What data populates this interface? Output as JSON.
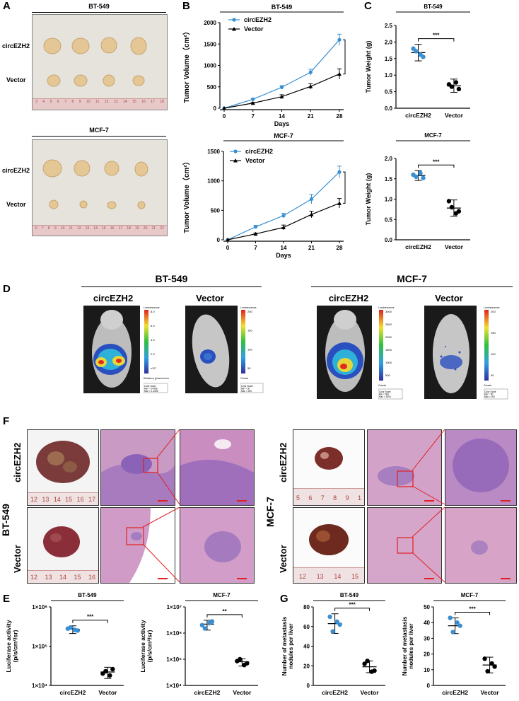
{
  "panel_letters": {
    "A": "A",
    "B": "B",
    "C": "C",
    "D": "D",
    "E": "E",
    "F": "F",
    "G": "G"
  },
  "cells": {
    "bt549": "BT-549",
    "mcf7": "MCF-7"
  },
  "groups": {
    "circ": "circEZH2",
    "vec": "Vector"
  },
  "panelA": {
    "bt_ruler": [
      "3",
      "4",
      "5",
      "6",
      "7",
      "8",
      "9",
      "10",
      "11",
      "12",
      "13",
      "14",
      "15",
      "16",
      "17",
      "18"
    ],
    "mcf_ruler": [
      "6",
      "7",
      "8",
      "9",
      "10",
      "11",
      "12",
      "13",
      "14",
      "15",
      "16",
      "17",
      "18",
      "19",
      "20",
      "21",
      "22"
    ]
  },
  "chart_data": [
    {
      "id": "B-BT549",
      "type": "line",
      "title": "BT-549",
      "x": [
        0,
        7,
        14,
        21,
        28
      ],
      "xlabel": "Days",
      "ylabel": "Tumor Volume（cm²）",
      "ylim": [
        0,
        2000
      ],
      "yticks": [
        "0",
        "500",
        "1000",
        "1500",
        "2000"
      ],
      "series": [
        {
          "name": "circEZH2",
          "values": [
            0,
            210,
            490,
            840,
            1600
          ],
          "err": [
            0,
            20,
            40,
            70,
            130
          ],
          "color": "#3a8fd0"
        },
        {
          "name": "Vector",
          "values": [
            0,
            120,
            270,
            510,
            800
          ],
          "err": [
            0,
            15,
            45,
            60,
            120
          ],
          "color": "#000000"
        }
      ],
      "sig": "***"
    },
    {
      "id": "B-MCF7",
      "type": "line",
      "title": "MCF-7",
      "x": [
        0,
        7,
        14,
        21,
        28
      ],
      "xlabel": "Days",
      "ylabel": "Tumor Volume（cm²）",
      "ylim": [
        0,
        1500
      ],
      "yticks": [
        "0",
        "500",
        "1000",
        "1500"
      ],
      "series": [
        {
          "name": "circEZH2",
          "values": [
            0,
            220,
            410,
            690,
            1150
          ],
          "err": [
            0,
            25,
            40,
            80,
            100
          ],
          "color": "#3a8fd0"
        },
        {
          "name": "Vector",
          "values": [
            0,
            100,
            210,
            430,
            620
          ],
          "err": [
            0,
            15,
            40,
            55,
            80
          ],
          "color": "#000000"
        }
      ],
      "sig": "***"
    },
    {
      "id": "C-BT549",
      "type": "scatter",
      "title": "BT-549",
      "ylabel": "Tumor Weight (g)",
      "categories": [
        "circEZH2",
        "Vector"
      ],
      "ylim": [
        0,
        2.5
      ],
      "yticks": [
        "0.0",
        "0.5",
        "1.0",
        "1.5",
        "2.0",
        "2.5"
      ],
      "points": [
        [
          1.8,
          1.55,
          1.72,
          1.62
        ],
        [
          0.72,
          0.58,
          0.65,
          0.78
        ]
      ],
      "means": [
        1.68,
        0.68
      ],
      "sds": [
        0.25,
        0.2
      ],
      "sig": "***"
    },
    {
      "id": "C-MCF7",
      "type": "scatter",
      "title": "MCF-7",
      "ylabel": "Tumor Weight (g)",
      "categories": [
        "circEZH2",
        "Vector"
      ],
      "ylim": [
        0,
        2.0
      ],
      "yticks": [
        "0.0",
        "0.5",
        "1.0",
        "1.5",
        "2.0"
      ],
      "points": [
        [
          1.6,
          1.52,
          1.55,
          1.64
        ],
        [
          0.95,
          0.7,
          0.8,
          0.65
        ]
      ],
      "means": [
        1.58,
        0.78
      ],
      "sds": [
        0.12,
        0.2
      ],
      "sig": "***"
    },
    {
      "id": "E-BT549",
      "type": "scatter",
      "scale": "log",
      "title": "BT-549",
      "ylabel": "Luciferase activity (p/s/cm²/sr)",
      "categories": [
        "circEZH2",
        "Vector"
      ],
      "ylim": [
        10000,
        1000000
      ],
      "yticks": [
        "1×10⁴",
        "1×10⁵",
        "1×10⁶"
      ],
      "points": [
        [
          280000,
          250000,
          300000,
          260000
        ],
        [
          20000,
          26000,
          23000,
          18000
        ]
      ],
      "means": [
        270000,
        22000
      ],
      "sds": [
        60000,
        7000
      ],
      "sig": "***"
    },
    {
      "id": "E-MCF7",
      "type": "scatter",
      "scale": "log",
      "title": "MCF-7",
      "ylabel": "Luciferase activity (p/s/cm²/sr)",
      "categories": [
        "circEZH2",
        "Vector"
      ],
      "ylim": [
        10000,
        10000000
      ],
      "yticks": [
        "1×10⁴",
        "1×10⁵",
        "1×10⁶",
        "1×10⁷"
      ],
      "points": [
        [
          2000000,
          2800000,
          1500000,
          2400000
        ],
        [
          85000,
          70000,
          100000,
          60000
        ]
      ],
      "means": [
        2200000,
        80000
      ],
      "sds": [
        900000,
        25000
      ],
      "sig": "**"
    },
    {
      "id": "G-BT549",
      "type": "scatter",
      "title": "BT-549",
      "ylabel": "Number of metastasis nodules per liver",
      "categories": [
        "circEZH2",
        "Vector"
      ],
      "ylim": [
        0,
        80
      ],
      "yticks": [
        "0",
        "20",
        "40",
        "60",
        "80"
      ],
      "points": [
        [
          70,
          62,
          55,
          65
        ],
        [
          22,
          15,
          25,
          14
        ]
      ],
      "means": [
        63,
        19
      ],
      "sds": [
        10,
        6
      ],
      "sig": "***"
    },
    {
      "id": "G-MCF7",
      "type": "scatter",
      "title": "MCF-7",
      "ylabel": "Number of metastasis nodules per liver",
      "categories": [
        "circEZH2",
        "Vector"
      ],
      "ylim": [
        0,
        50
      ],
      "yticks": [
        "0",
        "10",
        "20",
        "30",
        "40",
        "50"
      ],
      "points": [
        [
          43,
          38,
          34,
          40
        ],
        [
          17,
          12,
          9,
          14
        ]
      ],
      "means": [
        38,
        13
      ],
      "sds": [
        5,
        5
      ],
      "sig": "***"
    }
  ],
  "panelD": {
    "bt": {
      "scale1": "Luminescence",
      "scale1_ticks": [
        "8.0",
        "6.0",
        "4.0",
        "2.0",
        "x10⁷"
      ],
      "scale1_unit": "Radiance (p/sec/cm²/sr)",
      "scale1_box": "Color Scale\nMin = 5.44e6\nMax = 1.40e8",
      "scale2": "Luminescence",
      "scale2_ticks": [
        "200",
        "150",
        "100",
        "50"
      ],
      "scale2_unit": "Counts",
      "scale2_box": "Color Scale\nMin = 50\nMax = 200"
    },
    "mcf": {
      "scale1": "Luminescence",
      "scale1_ticks": [
        "3000",
        "2500",
        "2000",
        "1500",
        "1000",
        "500"
      ],
      "scale1_unit": "Counts",
      "scale1_box": "Color Scale\nMin = 500\nMax = 3000",
      "scale2": "Luminescence",
      "scale2_ticks": [
        "200",
        "150",
        "100",
        "50"
      ],
      "scale2_unit": "Counts",
      "scale2_box": "Color Scale\nMin = 50\nMax = 200"
    }
  },
  "panelF": {
    "bt_ruler1": [
      "12",
      "13",
      "14",
      "15",
      "16",
      "17"
    ],
    "bt_ruler2": [
      "12",
      "13",
      "14",
      "15",
      "16"
    ],
    "mcf_ruler1": [
      "5",
      "6",
      "7",
      "8",
      "9",
      "1"
    ],
    "mcf_ruler2": [
      "12",
      "13",
      "14",
      "15"
    ]
  },
  "colors": {
    "circ": "#3a8fd0",
    "vec": "#000000",
    "zoom": "#e02020"
  }
}
